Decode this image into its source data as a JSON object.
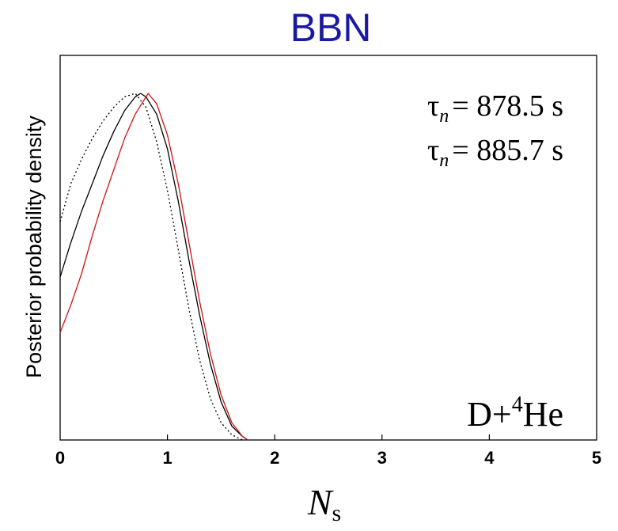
{
  "chart_data": {
    "type": "line",
    "title": "BBN",
    "ylabel": "Posterior probability density",
    "xlabel": {
      "main": "N",
      "sub": "s"
    },
    "xlim": [
      0,
      5
    ],
    "ylim": [
      0,
      1.0
    ],
    "xticks": [
      "0",
      "1",
      "2",
      "3",
      "4",
      "5"
    ],
    "grid": false,
    "annotations": {
      "tau1": {
        "symbol": "τ",
        "sub": "n",
        "text": "= 878.5 s"
      },
      "tau2": {
        "symbol": "τ",
        "sub": "n",
        "text": "= 885.7 s"
      },
      "dataset": {
        "prefix": "D+",
        "sup": "4",
        "suffix": "He"
      }
    },
    "series": [
      {
        "color": "#000000",
        "style": "dotted",
        "x": [
          0,
          0.1,
          0.2,
          0.3,
          0.4,
          0.5,
          0.6,
          0.7,
          0.8,
          0.9,
          1.0,
          1.1,
          1.2,
          1.3,
          1.4,
          1.5,
          1.6,
          1.7
        ],
        "y": [
          0.63,
          0.74,
          0.81,
          0.87,
          0.92,
          0.96,
          0.99,
          1.0,
          0.96,
          0.86,
          0.72,
          0.55,
          0.38,
          0.23,
          0.12,
          0.05,
          0.015,
          0.0
        ]
      },
      {
        "color": "#000000",
        "style": "solid",
        "x": [
          0,
          0.1,
          0.2,
          0.3,
          0.4,
          0.5,
          0.6,
          0.7,
          0.75,
          0.8,
          0.9,
          1.0,
          1.1,
          1.2,
          1.3,
          1.4,
          1.5,
          1.6,
          1.7,
          1.75
        ],
        "y": [
          0.47,
          0.57,
          0.66,
          0.74,
          0.82,
          0.89,
          0.95,
          0.99,
          1.0,
          0.99,
          0.94,
          0.84,
          0.69,
          0.52,
          0.36,
          0.22,
          0.11,
          0.04,
          0.01,
          0.0
        ]
      },
      {
        "color": "#d01010",
        "style": "solid",
        "x": [
          0,
          0.1,
          0.2,
          0.3,
          0.4,
          0.5,
          0.6,
          0.7,
          0.8,
          0.82,
          0.9,
          1.0,
          1.1,
          1.2,
          1.3,
          1.4,
          1.5,
          1.6,
          1.7,
          1.75
        ],
        "y": [
          0.31,
          0.39,
          0.48,
          0.59,
          0.69,
          0.78,
          0.87,
          0.94,
          0.99,
          1.0,
          0.97,
          0.88,
          0.74,
          0.57,
          0.4,
          0.25,
          0.13,
          0.05,
          0.01,
          0.0
        ]
      }
    ]
  }
}
